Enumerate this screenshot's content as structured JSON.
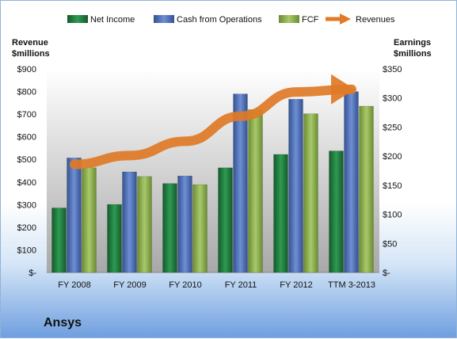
{
  "company": "Ansys",
  "chart_data": {
    "type": "bar",
    "categories": [
      "FY 2008",
      "FY 2009",
      "FY 2010",
      "FY 2011",
      "FY 2012",
      "TTM 3-2013"
    ],
    "series": [
      {
        "name": "Net Income",
        "axis": "right",
        "color": "#1e7a3c",
        "values": [
          111,
          117,
          153,
          180,
          203,
          209
        ]
      },
      {
        "name": "Cash from Operations",
        "axis": "right",
        "color": "#4a6fbd",
        "values": [
          197,
          173,
          166,
          307,
          298,
          311
        ]
      },
      {
        "name": "FCF",
        "axis": "right",
        "color": "#8db34a",
        "values": [
          180,
          165,
          151,
          280,
          273,
          286
        ]
      },
      {
        "name": "Revenues",
        "axis": "left",
        "type": "arrow-line",
        "color": "#e07a26",
        "values": [
          478,
          517,
          580,
          691,
          798,
          810
        ]
      }
    ],
    "left_axis": {
      "label_line1": "Revenue",
      "label_line2": "$millions",
      "ylim": [
        0,
        900
      ],
      "ticks": [
        "$-",
        "$100",
        "$200",
        "$300",
        "$400",
        "$500",
        "$600",
        "$700",
        "$800",
        "$900"
      ]
    },
    "right_axis": {
      "label_line1": "Earnings",
      "label_line2": "$millions",
      "ylim": [
        0,
        350
      ],
      "ticks": [
        "$-",
        "$50",
        "$100",
        "$150",
        "$200",
        "$250",
        "$300",
        "$350"
      ]
    },
    "legend_position": "top",
    "grid": false
  }
}
